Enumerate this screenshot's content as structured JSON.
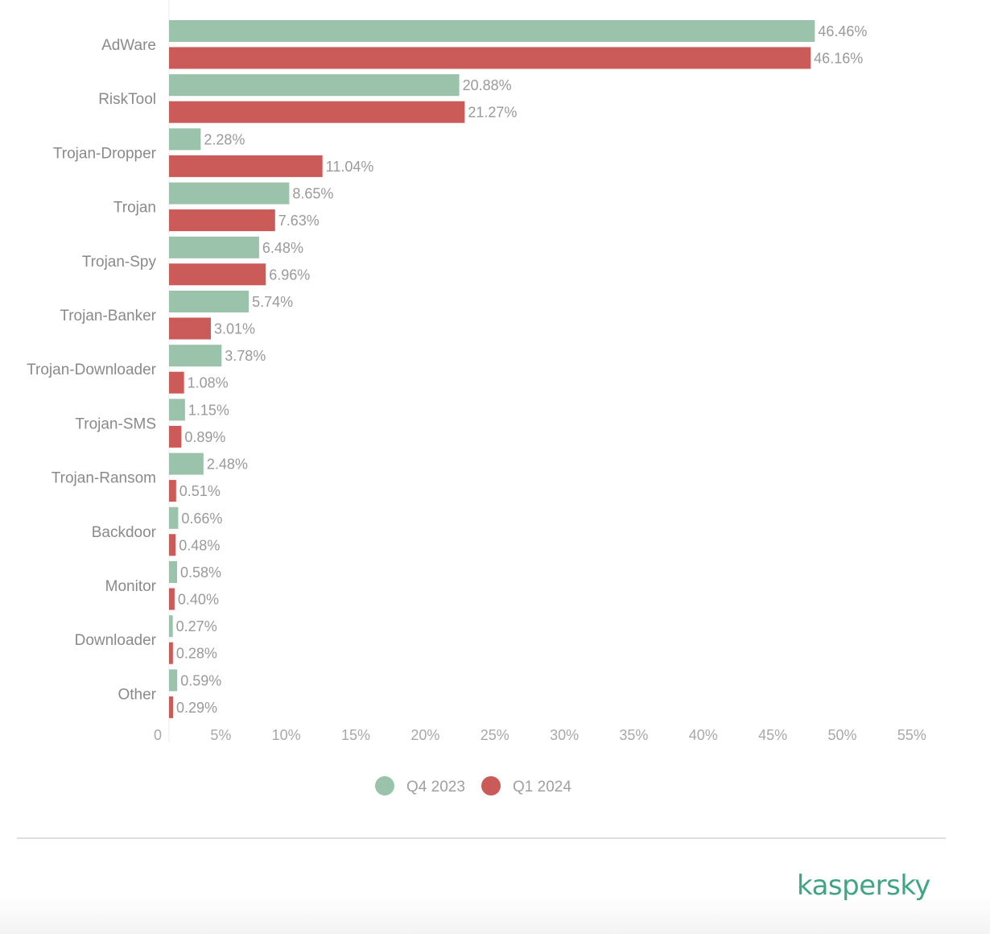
{
  "chart_data": {
    "type": "bar",
    "orientation": "horizontal",
    "categories": [
      "AdWare",
      "RiskTool",
      "Trojan-Dropper",
      "Trojan",
      "Trojan-Spy",
      "Trojan-Banker",
      "Trojan-Downloader",
      "Trojan-SMS",
      "Trojan-Ransom",
      "Backdoor",
      "Monitor",
      "Downloader",
      "Other"
    ],
    "series": [
      {
        "name": "Q4 2023",
        "color": "#9bc2aa",
        "values": [
          46.46,
          20.88,
          2.28,
          8.65,
          6.48,
          5.74,
          3.78,
          1.15,
          2.48,
          0.66,
          0.58,
          0.27,
          0.59
        ]
      },
      {
        "name": "Q1 2024",
        "color": "#cb5b59",
        "values": [
          46.16,
          21.27,
          11.04,
          7.63,
          6.96,
          3.01,
          1.08,
          0.89,
          0.51,
          0.48,
          0.4,
          0.28,
          0.29
        ]
      }
    ],
    "value_labels": [
      [
        "46.46%",
        "20.88%",
        "2.28%",
        "8.65%",
        "6.48%",
        "5.74%",
        "3.78%",
        "1.15%",
        "2.48%",
        "0.66%",
        "0.58%",
        "0.27%",
        "0.59%"
      ],
      [
        "46.16%",
        "21.27%",
        "11.04%",
        "7.63%",
        "6.96%",
        "3.01%",
        "1.08%",
        "0.89%",
        "0.51%",
        "0.48%",
        "0.40%",
        "0.28%",
        "0.29%"
      ]
    ],
    "xlim": [
      0,
      55
    ],
    "x_ticks": [
      0,
      5,
      10,
      15,
      20,
      25,
      30,
      35,
      40,
      45,
      50,
      55
    ],
    "x_tick_labels": [
      "0",
      "5%",
      "10%",
      "15%",
      "20%",
      "25%",
      "30%",
      "35%",
      "40%",
      "45%",
      "50%",
      "55%"
    ],
    "grid": false,
    "legend_position": "bottom"
  },
  "brand": {
    "logo_text": "kaspersky",
    "color": "#3fa585"
  }
}
